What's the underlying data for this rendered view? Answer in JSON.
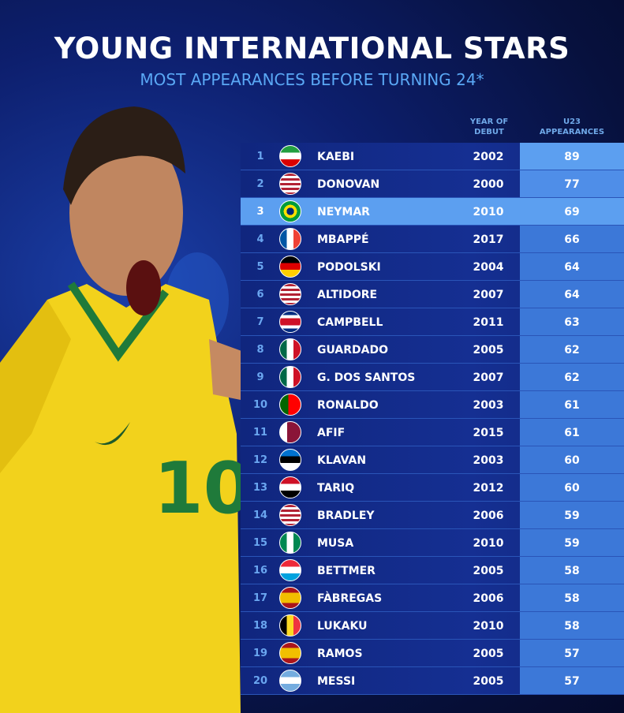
{
  "title": "YOUNG INTERNATIONAL STARS",
  "subtitle": "MOST APPEARANCES BEFORE TURNING 24*",
  "chart_data": {
    "type": "table",
    "title": "YOUNG INTERNATIONAL STARS",
    "subtitle": "MOST APPEARANCES BEFORE TURNING 24*",
    "columns": [
      "",
      "",
      "",
      "YEAR OF DEBUT",
      "U23 APPEARANCES"
    ],
    "highlight_color": "#5c9ff0",
    "highlighted_rank": 3,
    "rows": [
      {
        "rank": "1",
        "flag": "iran-flag-icon",
        "name": "KAEBI",
        "year": "2002",
        "apps": "89"
      },
      {
        "rank": "2",
        "flag": "usa-flag-icon",
        "name": "DONOVAN",
        "year": "2000",
        "apps": "77"
      },
      {
        "rank": "3",
        "flag": "brazil-flag-icon",
        "name": "NEYMAR",
        "year": "2010",
        "apps": "69"
      },
      {
        "rank": "4",
        "flag": "france-flag-icon",
        "name": "MBAPPÉ",
        "year": "2017",
        "apps": "66"
      },
      {
        "rank": "5",
        "flag": "germany-flag-icon",
        "name": "PODOLSKI",
        "year": "2004",
        "apps": "64"
      },
      {
        "rank": "6",
        "flag": "usa-flag-icon",
        "name": "ALTIDORE",
        "year": "2007",
        "apps": "64"
      },
      {
        "rank": "7",
        "flag": "costa-rica-flag-icon",
        "name": "CAMPBELL",
        "year": "2011",
        "apps": "63"
      },
      {
        "rank": "8",
        "flag": "mexico-flag-icon",
        "name": "GUARDADO",
        "year": "2005",
        "apps": "62"
      },
      {
        "rank": "9",
        "flag": "mexico-flag-icon",
        "name": "G. DOS SANTOS",
        "year": "2007",
        "apps": "62"
      },
      {
        "rank": "10",
        "flag": "portugal-flag-icon",
        "name": "RONALDO",
        "year": "2003",
        "apps": "61"
      },
      {
        "rank": "11",
        "flag": "qatar-flag-icon",
        "name": "AFIF",
        "year": "2015",
        "apps": "61"
      },
      {
        "rank": "12",
        "flag": "estonia-flag-icon",
        "name": "KLAVAN",
        "year": "2003",
        "apps": "60"
      },
      {
        "rank": "13",
        "flag": "iraq-flag-icon",
        "name": "TARIQ",
        "year": "2012",
        "apps": "60"
      },
      {
        "rank": "14",
        "flag": "usa-flag-icon",
        "name": "BRADLEY",
        "year": "2006",
        "apps": "59"
      },
      {
        "rank": "15",
        "flag": "nigeria-flag-icon",
        "name": "MUSA",
        "year": "2010",
        "apps": "59"
      },
      {
        "rank": "16",
        "flag": "luxembourg-flag-icon",
        "name": "BETTMER",
        "year": "2005",
        "apps": "58"
      },
      {
        "rank": "17",
        "flag": "spain-flag-icon",
        "name": "FÀBREGAS",
        "year": "2006",
        "apps": "58"
      },
      {
        "rank": "18",
        "flag": "belgium-flag-icon",
        "name": "LUKAKU",
        "year": "2010",
        "apps": "58"
      },
      {
        "rank": "19",
        "flag": "spain-flag-icon",
        "name": "RAMOS",
        "year": "2005",
        "apps": "57"
      },
      {
        "rank": "20",
        "flag": "argentina-flag-icon",
        "name": "MESSI",
        "year": "2005",
        "apps": "57"
      }
    ]
  }
}
